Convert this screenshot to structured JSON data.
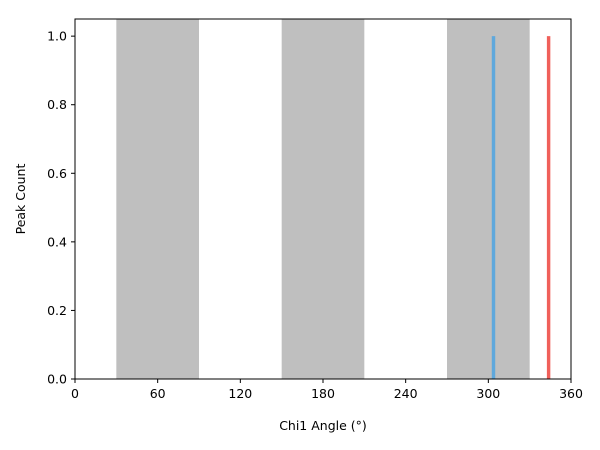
{
  "chart_data": {
    "type": "bar",
    "xlabel": "Chi1 Angle (°)",
    "ylabel": "Peak Count",
    "xlim": [
      0,
      360
    ],
    "ylim": [
      0,
      1.05
    ],
    "x_ticks": [
      0,
      60,
      120,
      180,
      240,
      300,
      360
    ],
    "y_ticks": [
      0.0,
      0.2,
      0.4,
      0.6,
      0.8,
      1.0
    ],
    "x_tick_labels": [
      "0",
      "60",
      "120",
      "180",
      "240",
      "300",
      "360"
    ],
    "y_tick_labels": [
      "0.0",
      "0.2",
      "0.4",
      "0.6",
      "0.8",
      "1.0"
    ],
    "grid": false,
    "shaded_regions": [
      {
        "start": 30,
        "end": 90,
        "color": "#bfbfbf"
      },
      {
        "start": 150,
        "end": 210,
        "color": "#bfbfbf"
      },
      {
        "start": 270,
        "end": 330,
        "color": "#bfbfbf"
      }
    ],
    "bars": [
      {
        "start": 302.5,
        "end": 305,
        "value": 1.0,
        "color": "#5fa8dc"
      },
      {
        "start": 342.5,
        "end": 345,
        "value": 1.0,
        "color": "#f0605a"
      }
    ]
  }
}
